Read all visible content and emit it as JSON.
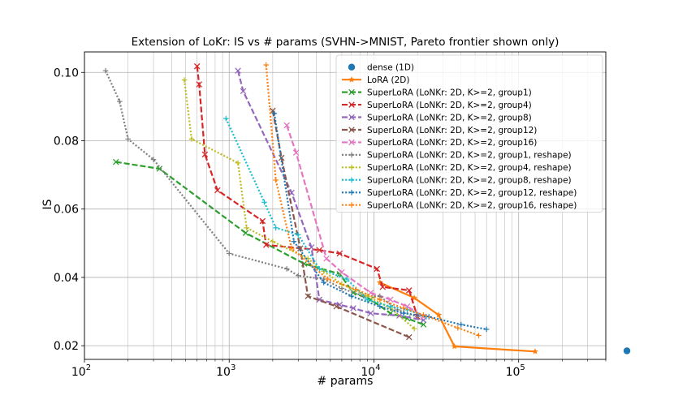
{
  "chart_data": {
    "type": "line",
    "title": "Extension of LoKr: IS vs # params (SVHN->MNIST, Pareto frontier shown only)",
    "xlabel": "# params",
    "ylabel": "IS",
    "xscale": "log",
    "xlim": [
      100,
      400000
    ],
    "ylim": [
      0.016,
      0.106
    ],
    "x_ticks": [
      {
        "value": 100,
        "base": "10",
        "exp": "2"
      },
      {
        "value": 1000,
        "base": "10",
        "exp": "3"
      },
      {
        "value": 10000,
        "base": "10",
        "exp": "4"
      },
      {
        "value": 100000,
        "base": "10",
        "exp": "5"
      }
    ],
    "y_ticks": [
      {
        "value": 0.02,
        "label": "0.02"
      },
      {
        "value": 0.04,
        "label": "0.04"
      },
      {
        "value": 0.06,
        "label": "0.06"
      },
      {
        "value": 0.08,
        "label": "0.08"
      },
      {
        "value": 0.1,
        "label": "0.10"
      }
    ],
    "grid": true,
    "legend_position": "top-right",
    "series": [
      {
        "name": "dense (1D)",
        "color": "#1f77b4",
        "style": "scatter",
        "marker": "circle",
        "points": [
          [
            560000,
            0.0185
          ]
        ]
      },
      {
        "name": "LoRA (2D)",
        "color": "#ff7f0e",
        "style": "solid",
        "marker": "star",
        "points": [
          [
            11000,
            0.0385
          ],
          [
            19000,
            0.034
          ],
          [
            28000,
            0.029
          ],
          [
            36000,
            0.0198
          ],
          [
            130000,
            0.0183
          ]
        ]
      },
      {
        "name": "SuperLoRA (LoNKr: 2D, K>=2, group1)",
        "color": "#2ca02c",
        "style": "dashed",
        "marker": "x",
        "points": [
          [
            165,
            0.0738
          ],
          [
            330,
            0.0718
          ],
          [
            1300,
            0.053
          ],
          [
            3300,
            0.044
          ],
          [
            5800,
            0.041
          ],
          [
            7200,
            0.0355
          ],
          [
            9500,
            0.0335
          ],
          [
            13000,
            0.0295
          ],
          [
            17000,
            0.028
          ],
          [
            22000,
            0.0262
          ]
        ]
      },
      {
        "name": "SuperLoRA (LoNKr: 2D, K>=2, group4)",
        "color": "#d62728",
        "style": "dashed",
        "marker": "x",
        "points": [
          [
            600,
            0.1018
          ],
          [
            620,
            0.0965
          ],
          [
            680,
            0.076
          ],
          [
            830,
            0.0655
          ],
          [
            1700,
            0.0565
          ],
          [
            1800,
            0.0495
          ],
          [
            4200,
            0.048
          ],
          [
            5800,
            0.047
          ],
          [
            10500,
            0.0425
          ],
          [
            11500,
            0.0372
          ],
          [
            17500,
            0.0362
          ],
          [
            20000,
            0.0285
          ]
        ]
      },
      {
        "name": "SuperLoRA (LoNKr: 2D, K>=2, group8)",
        "color": "#9467bd",
        "style": "dashed",
        "marker": "x",
        "points": [
          [
            1150,
            0.1005
          ],
          [
            1250,
            0.0945
          ],
          [
            2700,
            0.0648
          ],
          [
            3700,
            0.0488
          ],
          [
            4200,
            0.0335
          ],
          [
            5800,
            0.032
          ],
          [
            7200,
            0.031
          ],
          [
            9500,
            0.0295
          ],
          [
            15000,
            0.0288
          ],
          [
            22000,
            0.0275
          ]
        ]
      },
      {
        "name": "SuperLoRA (LoNKr: 2D, K>=2, group12)",
        "color": "#8c564b",
        "style": "dashed",
        "marker": "x",
        "points": [
          [
            2000,
            0.0888
          ],
          [
            2300,
            0.075
          ],
          [
            3100,
            0.0485
          ],
          [
            3500,
            0.0345
          ],
          [
            5500,
            0.0315
          ],
          [
            17500,
            0.0225
          ]
        ]
      },
      {
        "name": "SuperLoRA (LoNKr: 2D, K>=2, group16)",
        "color": "#e377c2",
        "style": "dashed",
        "marker": "x",
        "points": [
          [
            2500,
            0.0845
          ],
          [
            2900,
            0.0765
          ],
          [
            4700,
            0.0455
          ],
          [
            6000,
            0.0415
          ],
          [
            9500,
            0.0355
          ],
          [
            13000,
            0.0335
          ],
          [
            17000,
            0.0315
          ],
          [
            22000,
            0.0285
          ]
        ]
      },
      {
        "name": "SuperLoRA (LoNKr: 2D, K>=2, group1, reshape)",
        "color": "#7f7f7f",
        "style": "dotted",
        "marker": "plus",
        "points": [
          [
            140,
            0.1005
          ],
          [
            175,
            0.0915
          ],
          [
            200,
            0.0805
          ],
          [
            300,
            0.0745
          ],
          [
            1000,
            0.047
          ],
          [
            2500,
            0.0425
          ],
          [
            3000,
            0.0405
          ],
          [
            4500,
            0.0395
          ],
          [
            6000,
            0.0368
          ],
          [
            8500,
            0.0345
          ],
          [
            11000,
            0.0345
          ],
          [
            14500,
            0.0305
          ],
          [
            20000,
            0.0285
          ]
        ]
      },
      {
        "name": "SuperLoRA (LoNKr: 2D, K>=2, group4, reshape)",
        "color": "#bcbd22",
        "style": "dotted",
        "marker": "plus",
        "points": [
          [
            490,
            0.0978
          ],
          [
            550,
            0.0805
          ],
          [
            1150,
            0.0735
          ],
          [
            1320,
            0.0545
          ],
          [
            2000,
            0.0505
          ],
          [
            3500,
            0.0455
          ],
          [
            4500,
            0.0418
          ],
          [
            6000,
            0.038
          ],
          [
            9000,
            0.0345
          ],
          [
            13000,
            0.031
          ],
          [
            19000,
            0.025
          ]
        ]
      },
      {
        "name": "SuperLoRA (LoNKr: 2D, K>=2, group8, reshape)",
        "color": "#17becf",
        "style": "dotted",
        "marker": "plus",
        "points": [
          [
            950,
            0.0865
          ],
          [
            1750,
            0.062
          ],
          [
            2100,
            0.0545
          ],
          [
            3000,
            0.0525
          ],
          [
            4200,
            0.0425
          ],
          [
            6500,
            0.0395
          ],
          [
            9000,
            0.0335
          ],
          [
            13000,
            0.0315
          ],
          [
            17000,
            0.0305
          ],
          [
            23000,
            0.0285
          ]
        ]
      },
      {
        "name": "SuperLoRA (LoNKr: 2D, K>=2, group12, reshape)",
        "color": "#1f77b4",
        "style": "dotted",
        "marker": "plus",
        "points": [
          [
            2050,
            0.088
          ],
          [
            2800,
            0.0505
          ],
          [
            4500,
            0.0385
          ],
          [
            7000,
            0.0345
          ],
          [
            11000,
            0.0315
          ],
          [
            16000,
            0.0295
          ],
          [
            24000,
            0.0285
          ],
          [
            40000,
            0.0262
          ],
          [
            60000,
            0.0248
          ]
        ]
      },
      {
        "name": "SuperLoRA (LoNKr: 2D, K>=2, group16, reshape)",
        "color": "#ff7f0e",
        "style": "dotted",
        "marker": "plus",
        "points": [
          [
            1800,
            0.1022
          ],
          [
            2100,
            0.0685
          ],
          [
            2700,
            0.0485
          ],
          [
            4800,
            0.0395
          ],
          [
            7500,
            0.0365
          ],
          [
            11000,
            0.0335
          ],
          [
            16000,
            0.031
          ],
          [
            22000,
            0.029
          ],
          [
            38000,
            0.0252
          ],
          [
            53000,
            0.023
          ]
        ]
      }
    ]
  }
}
